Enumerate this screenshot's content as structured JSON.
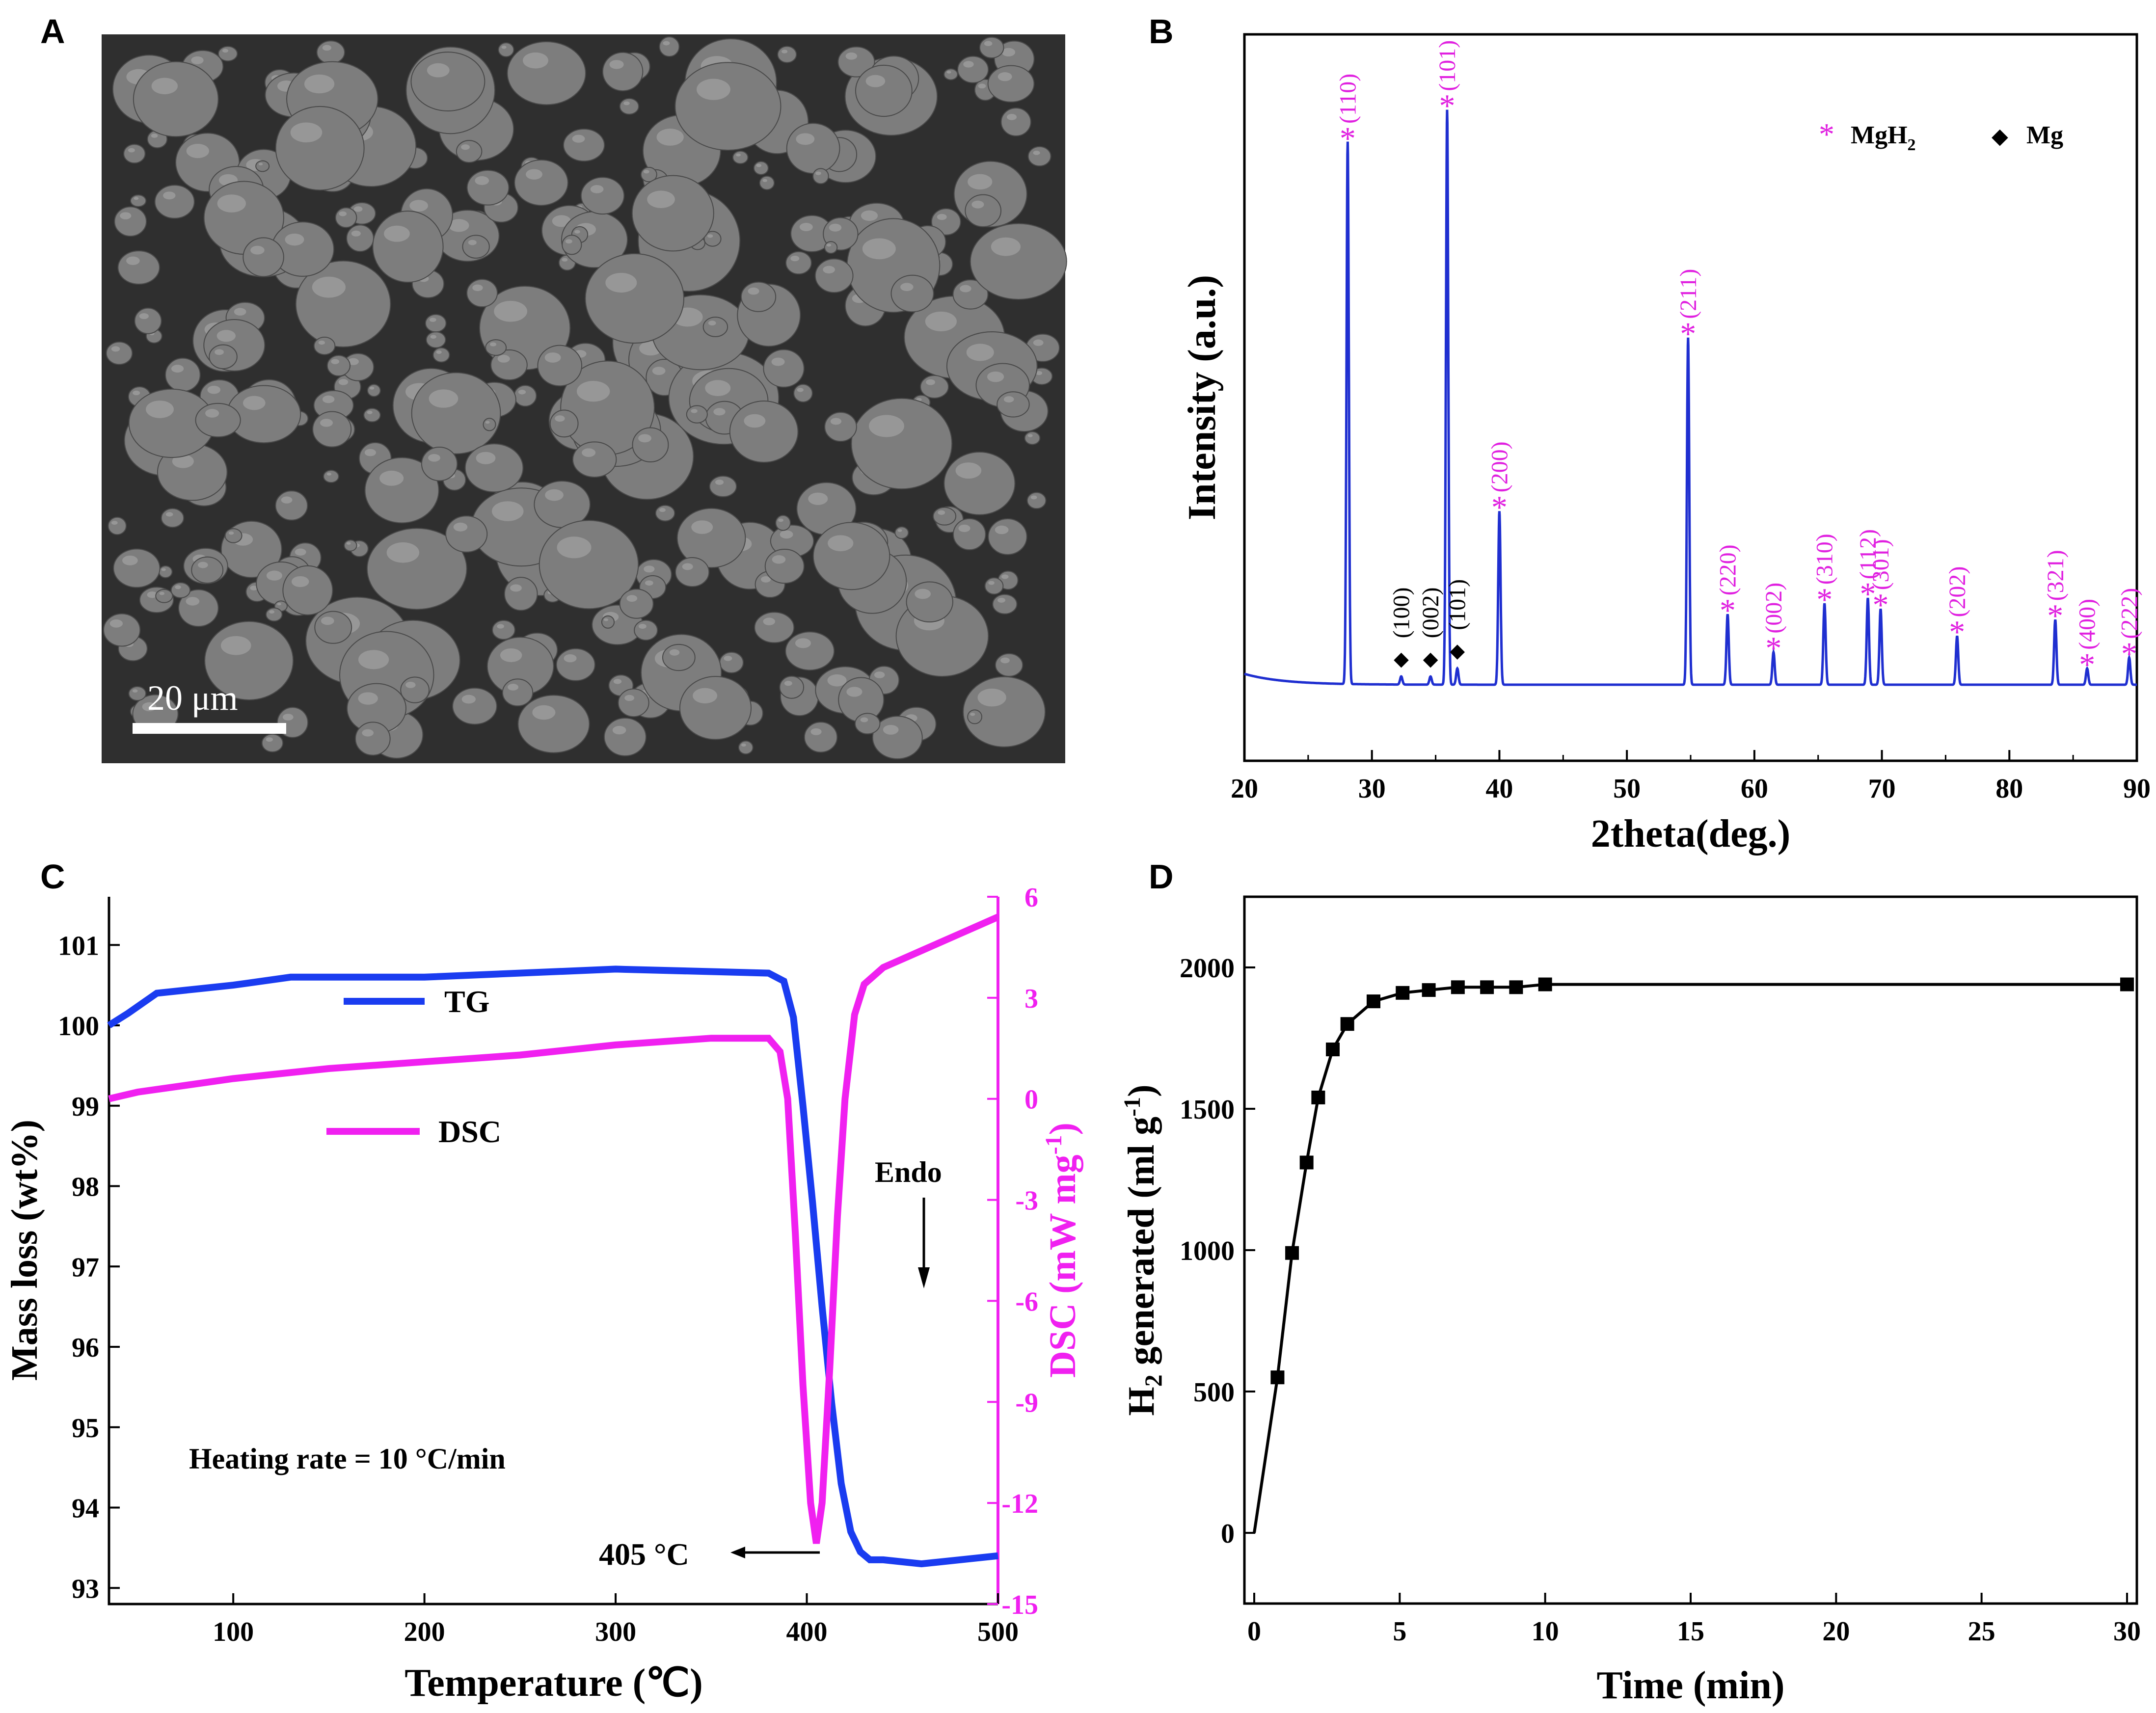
{
  "panels": {
    "a": {
      "letter": "A",
      "scale_bar_text": "20 μm",
      "colors": {
        "background": "#2f2f2f",
        "particle": "#7d7d7d",
        "highlight": "#b8b8b8",
        "scale_bar": "#ffffff"
      }
    },
    "b": {
      "letter": "B",
      "xlabel": "2theta(deg.)",
      "ylabel": "Intensity (a.u.)",
      "xticks": [
        "20",
        "30",
        "40",
        "50",
        "60",
        "70",
        "80",
        "90"
      ],
      "legend": [
        {
          "symbol": "*",
          "label_main": "MgH",
          "label_sub": "2",
          "color": "#e020e0"
        },
        {
          "symbol": "◆",
          "label_main": "Mg",
          "label_sub": "",
          "color": "#000000"
        }
      ]
    },
    "c": {
      "letter": "C",
      "xlabel": "Temperature (℃)",
      "ylabel_left": "Mass loss (wt%)",
      "ylabel_right": "DSC (mW mg",
      "ylabel_right_sup": "-1",
      "ylabel_right_end": ")",
      "xticks": [
        "100",
        "200",
        "300",
        "400",
        "500"
      ],
      "yticks_left": [
        "93",
        "94",
        "95",
        "96",
        "97",
        "98",
        "99",
        "100",
        "101"
      ],
      "yticks_right": [
        "-15",
        "-12",
        "-9",
        "-6",
        "-3",
        "0",
        "3",
        "6"
      ],
      "legend": [
        {
          "label": "TG",
          "color": "#1a3cf0"
        },
        {
          "label": "DSC",
          "color": "#f020f0"
        }
      ],
      "annotation_endo": "Endo",
      "annotation_rate": "Heating rate = 10 °C/min",
      "annotation_peak": "405 °C"
    },
    "d": {
      "letter": "D",
      "xlabel": "Time (min)",
      "ylabel_main": "H",
      "ylabel_sub": "2",
      "ylabel_rest": " generated (ml g",
      "ylabel_sup": "-1",
      "ylabel_end": ")",
      "xticks": [
        "0",
        "5",
        "10",
        "15",
        "20",
        "25",
        "30"
      ],
      "yticks": [
        "0",
        "500",
        "1000",
        "1500",
        "2000"
      ]
    }
  },
  "chart_data": [
    {
      "type": "line",
      "panel": "B",
      "xlabel": "2theta(deg.)",
      "ylabel": "Intensity (a.u.)",
      "xlim": [
        20,
        90
      ],
      "color": "#1f2fd0",
      "peaks": [
        {
          "x": 28.1,
          "y": 1.0,
          "label": "(110)",
          "phase": "MgH2"
        },
        {
          "x": 32.3,
          "y": 0.015,
          "label": "(100)",
          "phase": "Mg"
        },
        {
          "x": 34.6,
          "y": 0.015,
          "label": "(002)",
          "phase": "Mg"
        },
        {
          "x": 35.9,
          "y": 1.06,
          "label": "(101)",
          "phase": "MgH2"
        },
        {
          "x": 36.7,
          "y": 0.03,
          "label": "(101)",
          "phase": "Mg"
        },
        {
          "x": 40.0,
          "y": 0.32,
          "label": "(200)",
          "phase": "MgH2"
        },
        {
          "x": 54.8,
          "y": 0.64,
          "label": "(211)",
          "phase": "MgH2"
        },
        {
          "x": 57.9,
          "y": 0.13,
          "label": "(220)",
          "phase": "MgH2"
        },
        {
          "x": 61.5,
          "y": 0.06,
          "label": "(002)",
          "phase": "MgH2"
        },
        {
          "x": 65.5,
          "y": 0.15,
          "label": "(310)",
          "phase": "MgH2"
        },
        {
          "x": 68.9,
          "y": 0.16,
          "label": "(112)",
          "phase": "MgH2"
        },
        {
          "x": 69.9,
          "y": 0.14,
          "label": "(301)",
          "phase": "MgH2"
        },
        {
          "x": 75.9,
          "y": 0.09,
          "label": "(202)",
          "phase": "MgH2"
        },
        {
          "x": 83.6,
          "y": 0.12,
          "label": "(321)",
          "phase": "MgH2"
        },
        {
          "x": 86.1,
          "y": 0.03,
          "label": "(400)",
          "phase": "MgH2"
        },
        {
          "x": 89.4,
          "y": 0.05,
          "label": "(222)",
          "phase": "MgH2"
        }
      ]
    },
    {
      "type": "line",
      "panel": "C",
      "xlabel": "Temperature (℃)",
      "xlim": [
        35,
        500
      ],
      "y_left_lim": [
        92.8,
        101.6
      ],
      "y_right_lim": [
        -15,
        6
      ],
      "series": [
        {
          "name": "TG",
          "axis": "left",
          "color": "#1a3cf0",
          "x": [
            35,
            45,
            60,
            80,
            100,
            130,
            200,
            300,
            380,
            388,
            393,
            398,
            403,
            408,
            413,
            418,
            423,
            428,
            433,
            440,
            460,
            480,
            500
          ],
          "y": [
            100.0,
            100.15,
            100.4,
            100.45,
            100.5,
            100.6,
            100.6,
            100.7,
            100.65,
            100.55,
            100.1,
            99.0,
            97.8,
            96.5,
            95.3,
            94.3,
            93.7,
            93.45,
            93.35,
            93.35,
            93.3,
            93.35,
            93.4
          ]
        },
        {
          "name": "DSC",
          "axis": "right",
          "color": "#f020f0",
          "x": [
            35,
            50,
            100,
            150,
            200,
            250,
            300,
            350,
            380,
            386,
            390,
            394,
            398,
            402,
            405,
            408,
            412,
            416,
            420,
            425,
            430,
            440,
            460,
            480,
            500
          ],
          "y": [
            0.0,
            0.2,
            0.6,
            0.9,
            1.1,
            1.3,
            1.6,
            1.8,
            1.8,
            1.4,
            0.0,
            -4.0,
            -8.5,
            -12.0,
            -13.2,
            -12.0,
            -8.0,
            -3.5,
            0.0,
            2.5,
            3.4,
            3.9,
            4.4,
            4.9,
            5.4
          ]
        }
      ]
    },
    {
      "type": "line",
      "panel": "D",
      "xlabel": "Time (min)",
      "ylabel": "H2 generated (ml g-1)",
      "xlim": [
        0,
        30
      ],
      "ylim": [
        -250,
        2250
      ],
      "color": "#000000",
      "x": [
        0.0,
        0.8,
        1.3,
        1.8,
        2.2,
        2.7,
        3.2,
        4.1,
        5.1,
        6.0,
        7.0,
        8.0,
        9.0,
        10.0,
        30.0
      ],
      "y": [
        0,
        550,
        990,
        1310,
        1540,
        1710,
        1800,
        1880,
        1910,
        1920,
        1930,
        1930,
        1930,
        1940,
        1940
      ]
    }
  ]
}
